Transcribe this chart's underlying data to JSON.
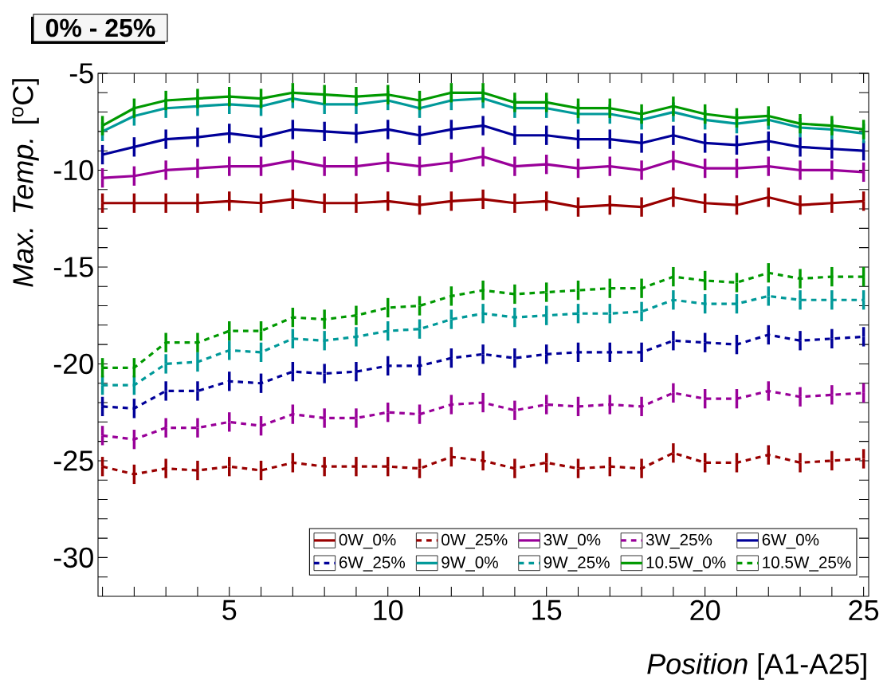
{
  "chart_data": {
    "type": "line",
    "title": "0% - 25%",
    "xlabel": "*Position* [A1-A25]",
    "ylabel": "*Max. Temp.* [$^{o}$C]",
    "x": [
      1,
      2,
      3,
      4,
      5,
      6,
      7,
      8,
      9,
      10,
      11,
      12,
      13,
      14,
      15,
      16,
      17,
      18,
      19,
      20,
      21,
      22,
      23,
      24,
      25
    ],
    "xlim": [
      0.86,
      25.16
    ],
    "ylim": [
      -32,
      -5
    ],
    "xticks": [
      {
        "value": 1,
        "label": null
      },
      {
        "value": 2,
        "label": null
      },
      {
        "value": 3,
        "label": null
      },
      {
        "value": 4,
        "label": null
      },
      5,
      {
        "value": 6,
        "label": null
      },
      {
        "value": 7,
        "label": null
      },
      {
        "value": 8,
        "label": null
      },
      {
        "value": 9,
        "label": null
      },
      10,
      {
        "value": 11,
        "label": null
      },
      {
        "value": 12,
        "label": null
      },
      {
        "value": 13,
        "label": null
      },
      {
        "value": 14,
        "label": null
      },
      15,
      {
        "value": 16,
        "label": null
      },
      {
        "value": 17,
        "label": null
      },
      {
        "value": 18,
        "label": null
      },
      {
        "value": 19,
        "label": null
      },
      20,
      {
        "value": 21,
        "label": null
      },
      {
        "value": 22,
        "label": null
      },
      {
        "value": 23,
        "label": null
      },
      {
        "value": 24,
        "label": null
      },
      25
    ],
    "yticks": [
      {
        "value": -31,
        "label": null
      },
      -30,
      {
        "value": -29,
        "label": null
      },
      {
        "value": -28,
        "label": null
      },
      {
        "value": -27,
        "label": null
      },
      {
        "value": -26,
        "label": null
      },
      -25,
      {
        "value": -24,
        "label": null
      },
      {
        "value": -23,
        "label": null
      },
      {
        "value": -22,
        "label": null
      },
      {
        "value": -21,
        "label": null
      },
      -20,
      {
        "value": -19,
        "label": null
      },
      {
        "value": -18,
        "label": null
      },
      {
        "value": -17,
        "label": null
      },
      {
        "value": -16,
        "label": null
      },
      -15,
      {
        "value": -14,
        "label": null
      },
      {
        "value": -13,
        "label": null
      },
      {
        "value": -12,
        "label": null
      },
      {
        "value": -11,
        "label": null
      },
      -10,
      {
        "value": -9,
        "label": null
      },
      {
        "value": -8,
        "label": null
      },
      {
        "value": -7,
        "label": null
      },
      {
        "value": -6,
        "label": null
      },
      -5
    ],
    "legend": "bottom right",
    "series": [
      {
        "name": "0W_0%",
        "color": "#990000",
        "line_style": "solid",
        "values": [
          -11.7,
          -11.7,
          -11.7,
          -11.7,
          -11.6,
          -11.7,
          -11.5,
          -11.7,
          -11.7,
          -11.6,
          -11.8,
          -11.6,
          -11.5,
          -11.7,
          -11.6,
          -11.9,
          -11.8,
          -11.9,
          -11.4,
          -11.7,
          -11.8,
          -11.4,
          -11.8,
          -11.7,
          -11.6
        ],
        "errors": [
          0.5,
          0.5,
          0.5,
          0.5,
          0.5,
          0.5,
          0.5,
          0.5,
          0.5,
          0.5,
          0.5,
          0.5,
          0.5,
          0.5,
          0.5,
          0.5,
          0.5,
          0.5,
          0.5,
          0.5,
          0.5,
          0.5,
          0.5,
          0.5,
          0.5
        ]
      },
      {
        "name": "0W_25%",
        "color": "#990000",
        "line_style": "dashed",
        "values": [
          -25.3,
          -25.7,
          -25.4,
          -25.5,
          -25.3,
          -25.5,
          -25.1,
          -25.3,
          -25.3,
          -25.3,
          -25.4,
          -24.8,
          -25.0,
          -25.4,
          -25.1,
          -25.4,
          -25.3,
          -25.4,
          -24.6,
          -25.1,
          -25.1,
          -24.7,
          -25.1,
          -25.0,
          -24.9
        ],
        "errors": [
          0.5,
          0.5,
          0.5,
          0.5,
          0.5,
          0.5,
          0.5,
          0.5,
          0.5,
          0.5,
          0.5,
          0.5,
          0.5,
          0.5,
          0.5,
          0.5,
          0.5,
          0.5,
          0.5,
          0.5,
          0.5,
          0.5,
          0.5,
          0.5,
          0.5
        ]
      },
      {
        "name": "3W_0%",
        "color": "#990099",
        "line_style": "solid",
        "values": [
          -10.4,
          -10.3,
          -10.0,
          -9.9,
          -9.8,
          -9.8,
          -9.5,
          -9.8,
          -9.8,
          -9.6,
          -9.8,
          -9.6,
          -9.3,
          -9.8,
          -9.7,
          -9.9,
          -9.8,
          -10.0,
          -9.5,
          -9.9,
          -9.9,
          -9.8,
          -10.0,
          -10.0,
          -10.1
        ],
        "errors": [
          0.5,
          0.5,
          0.5,
          0.5,
          0.5,
          0.5,
          0.5,
          0.5,
          0.5,
          0.5,
          0.5,
          0.5,
          0.5,
          0.5,
          0.5,
          0.5,
          0.5,
          0.5,
          0.5,
          0.5,
          0.5,
          0.5,
          0.5,
          0.5,
          0.5
        ]
      },
      {
        "name": "3W_25%",
        "color": "#990099",
        "line_style": "dashed",
        "values": [
          -23.7,
          -23.9,
          -23.3,
          -23.3,
          -23.0,
          -23.2,
          -22.6,
          -22.8,
          -22.8,
          -22.5,
          -22.6,
          -22.1,
          -22.0,
          -22.4,
          -22.1,
          -22.2,
          -22.1,
          -22.2,
          -21.5,
          -21.8,
          -21.8,
          -21.4,
          -21.7,
          -21.6,
          -21.5
        ],
        "errors": [
          0.5,
          0.5,
          0.5,
          0.5,
          0.5,
          0.5,
          0.5,
          0.5,
          0.5,
          0.5,
          0.5,
          0.5,
          0.5,
          0.5,
          0.5,
          0.5,
          0.5,
          0.5,
          0.5,
          0.5,
          0.5,
          0.5,
          0.5,
          0.5,
          0.5
        ]
      },
      {
        "name": "6W_0%",
        "color": "#000099",
        "line_style": "solid",
        "values": [
          -9.2,
          -8.8,
          -8.4,
          -8.3,
          -8.1,
          -8.3,
          -7.9,
          -8.0,
          -8.1,
          -7.9,
          -8.2,
          -7.9,
          -7.7,
          -8.2,
          -8.2,
          -8.4,
          -8.4,
          -8.6,
          -8.2,
          -8.6,
          -8.7,
          -8.5,
          -8.8,
          -8.9,
          -9.0
        ],
        "errors": [
          0.5,
          0.5,
          0.5,
          0.5,
          0.5,
          0.5,
          0.5,
          0.5,
          0.5,
          0.5,
          0.5,
          0.5,
          0.5,
          0.5,
          0.5,
          0.5,
          0.5,
          0.5,
          0.5,
          0.5,
          0.5,
          0.5,
          0.5,
          0.5,
          0.5
        ]
      },
      {
        "name": "6W_25%",
        "color": "#000099",
        "line_style": "dashed",
        "values": [
          -22.2,
          -22.3,
          -21.4,
          -21.4,
          -20.9,
          -21.0,
          -20.4,
          -20.5,
          -20.4,
          -20.1,
          -20.1,
          -19.7,
          -19.5,
          -19.7,
          -19.5,
          -19.4,
          -19.4,
          -19.4,
          -18.8,
          -18.9,
          -19.0,
          -18.5,
          -18.8,
          -18.7,
          -18.6
        ],
        "errors": [
          0.5,
          0.5,
          0.5,
          0.5,
          0.5,
          0.5,
          0.5,
          0.5,
          0.5,
          0.5,
          0.5,
          0.5,
          0.5,
          0.5,
          0.5,
          0.5,
          0.5,
          0.5,
          0.5,
          0.5,
          0.5,
          0.5,
          0.5,
          0.5,
          0.5
        ]
      },
      {
        "name": "9W_0%",
        "color": "#009999",
        "line_style": "solid",
        "values": [
          -8.0,
          -7.2,
          -6.8,
          -6.7,
          -6.6,
          -6.7,
          -6.3,
          -6.6,
          -6.6,
          -6.4,
          -6.8,
          -6.4,
          -6.3,
          -6.8,
          -6.8,
          -7.1,
          -7.1,
          -7.4,
          -7.0,
          -7.4,
          -7.6,
          -7.4,
          -7.8,
          -7.9,
          -8.1
        ],
        "errors": [
          0.5,
          0.5,
          0.5,
          0.5,
          0.5,
          0.5,
          0.5,
          0.5,
          0.5,
          0.5,
          0.5,
          0.5,
          0.5,
          0.5,
          0.5,
          0.5,
          0.5,
          0.5,
          0.5,
          0.5,
          0.5,
          0.5,
          0.5,
          0.5,
          0.5
        ]
      },
      {
        "name": "9W_25%",
        "color": "#009999",
        "line_style": "dashed",
        "values": [
          -21.1,
          -21.1,
          -20.0,
          -19.9,
          -19.3,
          -19.4,
          -18.7,
          -18.8,
          -18.6,
          -18.3,
          -18.2,
          -17.7,
          -17.4,
          -17.6,
          -17.5,
          -17.4,
          -17.4,
          -17.3,
          -16.7,
          -16.9,
          -16.9,
          -16.5,
          -16.7,
          -16.7,
          -16.7
        ],
        "errors": [
          0.5,
          0.5,
          0.5,
          0.5,
          0.5,
          0.5,
          0.5,
          0.5,
          0.5,
          0.5,
          0.5,
          0.5,
          0.5,
          0.5,
          0.5,
          0.5,
          0.5,
          0.5,
          0.5,
          0.5,
          0.5,
          0.5,
          0.5,
          0.5,
          0.5
        ]
      },
      {
        "name": "10.5W_0%",
        "color": "#009900",
        "line_style": "solid",
        "values": [
          -7.7,
          -6.8,
          -6.4,
          -6.3,
          -6.2,
          -6.3,
          -6.0,
          -6.1,
          -6.2,
          -6.1,
          -6.4,
          -6.0,
          -6.0,
          -6.5,
          -6.5,
          -6.8,
          -6.8,
          -7.1,
          -6.7,
          -7.1,
          -7.3,
          -7.2,
          -7.6,
          -7.7,
          -7.9
        ],
        "errors": [
          0.5,
          0.5,
          0.5,
          0.5,
          0.5,
          0.5,
          0.5,
          0.5,
          0.5,
          0.5,
          0.5,
          0.5,
          0.5,
          0.5,
          0.5,
          0.5,
          0.5,
          0.5,
          0.5,
          0.5,
          0.5,
          0.5,
          0.5,
          0.5,
          0.5
        ]
      },
      {
        "name": "10.5W_25%",
        "color": "#009900",
        "line_style": "dashed",
        "values": [
          -20.2,
          -20.2,
          -18.9,
          -18.9,
          -18.3,
          -18.3,
          -17.6,
          -17.7,
          -17.5,
          -17.1,
          -17.0,
          -16.5,
          -16.2,
          -16.4,
          -16.3,
          -16.2,
          -16.1,
          -16.1,
          -15.5,
          -15.7,
          -15.8,
          -15.3,
          -15.6,
          -15.5,
          -15.5
        ],
        "errors": [
          0.5,
          0.5,
          0.5,
          0.5,
          0.5,
          0.5,
          0.5,
          0.5,
          0.5,
          0.5,
          0.5,
          0.5,
          0.5,
          0.5,
          0.5,
          0.5,
          0.5,
          0.5,
          0.5,
          0.5,
          0.5,
          0.5,
          0.5,
          0.5,
          0.5
        ]
      }
    ]
  }
}
